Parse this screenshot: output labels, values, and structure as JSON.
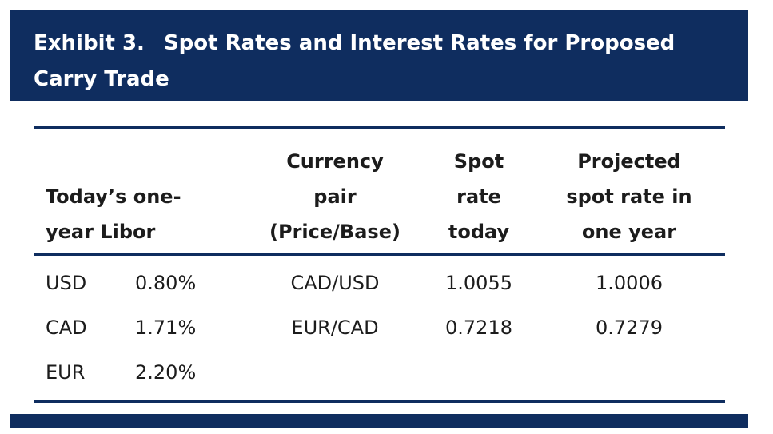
{
  "exhibit": {
    "label": "Exhibit 3.",
    "title_line1": "Spot Rates and Interest Rates for Proposed",
    "title_line2": "Carry Trade"
  },
  "table": {
    "headers": {
      "libor": [
        "Today’s one-",
        "year Libor"
      ],
      "pair": [
        "Currency",
        "pair",
        "(Price/Base)"
      ],
      "spot": [
        "Spot",
        "rate",
        "today"
      ],
      "projected": [
        "Projected",
        "spot rate in",
        "one year"
      ]
    },
    "rows": [
      {
        "currency": "USD",
        "libor": "0.80%",
        "pair": "CAD/USD",
        "spot": "1.0055",
        "projected": "1.0006"
      },
      {
        "currency": "CAD",
        "libor": "1.71%",
        "pair": "EUR/CAD",
        "spot": "0.7218",
        "projected": "0.7279"
      },
      {
        "currency": "EUR",
        "libor": "2.20%",
        "pair": "",
        "spot": "",
        "projected": ""
      }
    ]
  },
  "colors": {
    "accent": "#0f2d5f",
    "text": "#1c1c1c",
    "background": "#ffffff"
  }
}
